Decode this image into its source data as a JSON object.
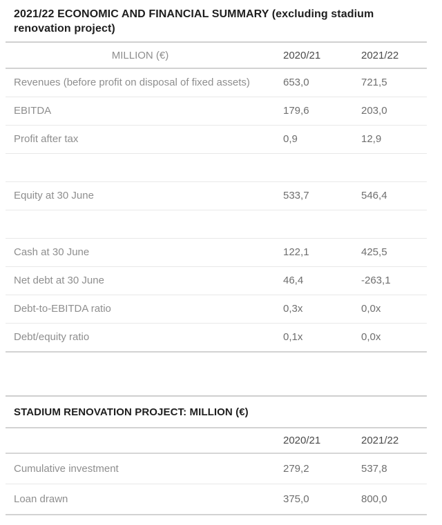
{
  "sections": [
    {
      "title": "2021/22 ECONOMIC AND FINANCIAL SUMMARY (excluding stadium renovation project)",
      "columns": [
        "MILLION (€)",
        "2020/21",
        "2021/22"
      ],
      "rows": [
        [
          "Revenues (before profit on disposal of fixed assets)",
          "653,0",
          "721,5"
        ],
        [
          "EBITDA",
          "179,6",
          "203,0"
        ],
        [
          "Profit after tax",
          "0,9",
          "12,9"
        ],
        [
          "",
          "",
          ""
        ],
        [
          "Equity at 30 June",
          "533,7",
          "546,4"
        ],
        [
          "",
          "",
          ""
        ],
        [
          "Cash at 30 June",
          "122,1",
          "425,5"
        ],
        [
          "Net debt at 30 June",
          "46,4",
          "-263,1"
        ],
        [
          "Debt-to-EBITDA ratio",
          "0,3x",
          "0,0x"
        ],
        [
          "Debt/equity ratio",
          "0,1x",
          "0,0x"
        ]
      ]
    },
    {
      "title": "STADIUM RENOVATION PROJECT: MILLION (€)",
      "columns": [
        "",
        "2020/21",
        "2021/22"
      ],
      "rows": [
        [
          "Cumulative investment",
          "279,2",
          "537,8"
        ],
        [
          "Loan drawn",
          "375,0",
          "800,0"
        ]
      ]
    }
  ],
  "colors": {
    "title_text": "#1e1e1e",
    "label_text": "#8e8e8e",
    "value_text": "#6e6e6e",
    "header_year_text": "#4a4a4a",
    "border_strong": "#d0d0d0",
    "border_light": "#e8e8e8"
  }
}
